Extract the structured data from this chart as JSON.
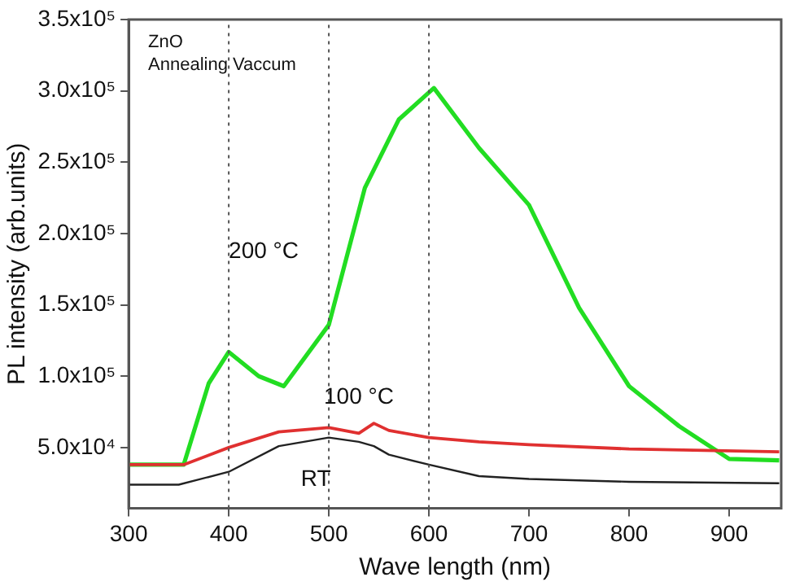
{
  "chart_data": {
    "type": "line",
    "xlabel": "Wave length (nm)",
    "ylabel": "PL intensity (arb.units)",
    "xlim": [
      300,
      952
    ],
    "xticks": [
      300,
      400,
      500,
      600,
      700,
      800,
      900
    ],
    "ylim": [
      7500,
      350000
    ],
    "yticks": [
      {
        "value": 50000,
        "label": "5.0x10⁴"
      },
      {
        "value": 100000,
        "label": "1.0x10⁵"
      },
      {
        "value": 150000,
        "label": "1.5x10⁵"
      },
      {
        "value": 200000,
        "label": "2.0x10⁵"
      },
      {
        "value": 250000,
        "label": "2.5x10⁵"
      },
      {
        "value": 300000,
        "label": "3.0x10⁵"
      },
      {
        "value": 350000,
        "label": "3.5x10⁵"
      }
    ],
    "grid": false,
    "legend": false,
    "marker": "none",
    "series": [
      {
        "name": "RT",
        "color": "#222222",
        "x": [
          300,
          350,
          400,
          450,
          500,
          530,
          545,
          560,
          600,
          650,
          700,
          800,
          950
        ],
        "values": [
          24000,
          24000,
          33000,
          51000,
          57000,
          54000,
          51000,
          45000,
          38000,
          30000,
          28000,
          26000,
          25000
        ]
      },
      {
        "name": "100 °C",
        "color": "#e03030",
        "x": [
          300,
          355,
          400,
          450,
          500,
          530,
          545,
          560,
          600,
          650,
          700,
          800,
          950
        ],
        "values": [
          38000,
          38000,
          50000,
          61000,
          64000,
          60000,
          67000,
          62000,
          57000,
          54000,
          52000,
          49000,
          47000
        ]
      },
      {
        "name": "200 °C",
        "color": "#22dd22",
        "x": [
          300,
          355,
          380,
          400,
          430,
          455,
          500,
          536,
          570,
          605,
          650,
          700,
          750,
          800,
          850,
          900,
          950
        ],
        "values": [
          38000,
          38000,
          95000,
          117000,
          100000,
          93000,
          136000,
          232000,
          280000,
          302000,
          260000,
          220000,
          148000,
          93000,
          65000,
          42000,
          41000
        ]
      }
    ],
    "ref_lines": [
      {
        "axis": "x",
        "value": 400,
        "color": "#555555",
        "line_style": "dotted"
      },
      {
        "axis": "x",
        "value": 500,
        "color": "#555555",
        "line_style": "dotted"
      },
      {
        "axis": "x",
        "value": 600,
        "color": "#555555",
        "line_style": "dotted"
      }
    ],
    "annotations": [
      "ZnO",
      "Annealing Vaccum"
    ]
  }
}
